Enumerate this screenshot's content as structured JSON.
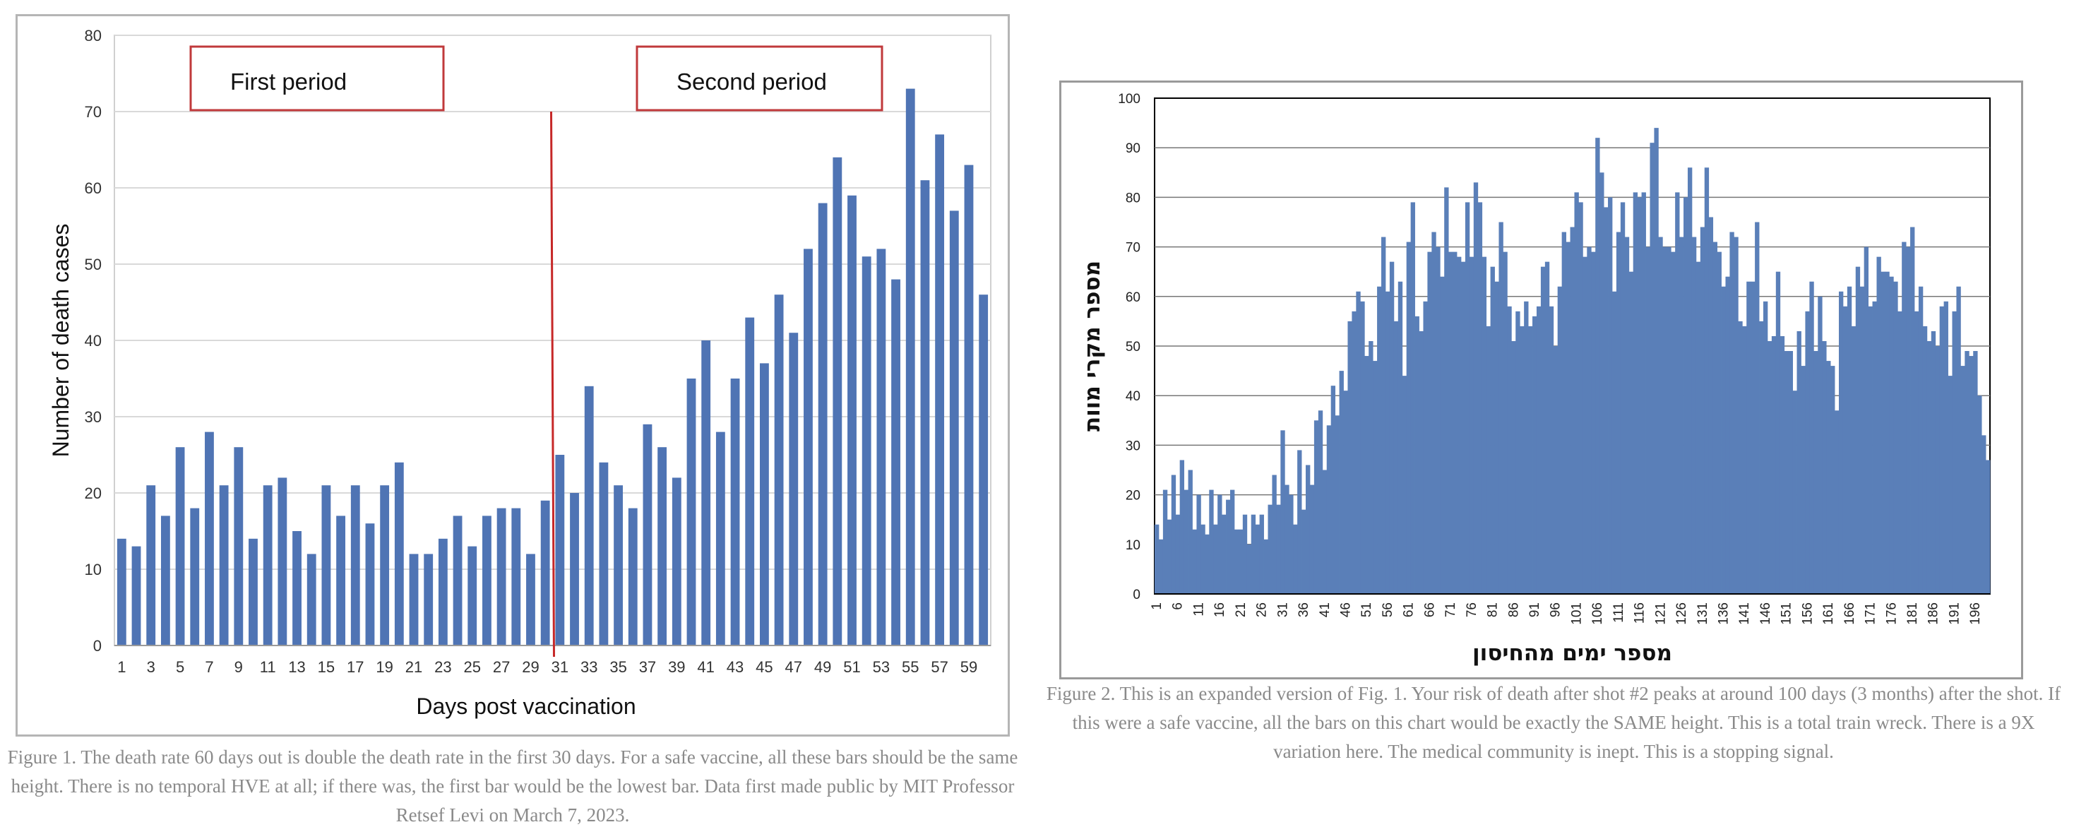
{
  "chart_data": [
    {
      "type": "bar",
      "title": "",
      "xlabel": "Days post vaccination",
      "ylabel": "Number of death cases",
      "ylim": [
        0,
        80
      ],
      "yticks": [
        0,
        10,
        20,
        30,
        40,
        50,
        60,
        70,
        80
      ],
      "grid": true,
      "color": "#4f74b4",
      "annotations": [
        "First period",
        "Second period"
      ],
      "divider_after_day": 30,
      "categories": [
        1,
        2,
        3,
        4,
        5,
        6,
        7,
        8,
        9,
        10,
        11,
        12,
        13,
        14,
        15,
        16,
        17,
        18,
        19,
        20,
        21,
        22,
        23,
        24,
        25,
        26,
        27,
        28,
        29,
        30,
        31,
        32,
        33,
        34,
        35,
        36,
        37,
        38,
        39,
        40,
        41,
        42,
        43,
        44,
        45,
        46,
        47,
        48,
        49,
        50,
        51,
        52,
        53,
        54,
        55,
        56,
        57,
        58,
        59,
        60
      ],
      "xtick_labels": [
        "1",
        "3",
        "5",
        "7",
        "9",
        "11",
        "13",
        "15",
        "17",
        "19",
        "21",
        "23",
        "25",
        "27",
        "29",
        "31",
        "33",
        "35",
        "37",
        "39",
        "41",
        "43",
        "45",
        "47",
        "49",
        "51",
        "53",
        "55",
        "57",
        "59"
      ],
      "values": [
        14,
        13,
        21,
        17,
        26,
        18,
        28,
        21,
        26,
        14,
        21,
        22,
        15,
        12,
        21,
        17,
        21,
        16,
        21,
        24,
        12,
        12,
        14,
        17,
        13,
        17,
        18,
        18,
        12,
        19,
        25,
        20,
        34,
        24,
        21,
        18,
        29,
        26,
        22,
        35,
        40,
        28,
        35,
        43,
        37,
        46,
        41,
        52,
        58,
        64,
        59,
        51,
        52,
        48,
        73,
        61,
        67,
        57,
        63,
        46
      ]
    },
    {
      "type": "bar",
      "title": "",
      "xlabel": "מספר ימים מהחיסון",
      "ylabel": "מספר מקרי מוות",
      "ylim": [
        0,
        100
      ],
      "yticks": [
        0,
        10,
        20,
        30,
        40,
        50,
        60,
        70,
        80,
        90,
        100
      ],
      "grid": true,
      "color": "#5a7fb8",
      "xtick_labels": [
        "1",
        "6",
        "11",
        "16",
        "21",
        "26",
        "31",
        "36",
        "41",
        "46",
        "51",
        "56",
        "61",
        "66",
        "71",
        "76",
        "81",
        "86",
        "91",
        "96",
        "101",
        "106",
        "111",
        "116",
        "121",
        "126",
        "131",
        "136",
        "141",
        "146",
        "151",
        "156",
        "161",
        "166",
        "171",
        "176",
        "181",
        "186",
        "191",
        "196"
      ],
      "x_start": 1,
      "x_end": 200,
      "values": [
        14,
        11,
        21,
        15,
        24,
        16,
        27,
        21,
        25,
        13,
        20,
        14,
        12,
        21,
        14,
        20,
        16,
        19,
        21,
        13,
        13,
        16,
        10,
        16,
        14,
        16,
        11,
        18,
        24,
        18,
        33,
        22,
        20,
        14,
        29,
        17,
        26,
        22,
        35,
        37,
        25,
        34,
        42,
        36,
        45,
        41,
        55,
        57,
        61,
        59,
        48,
        51,
        47,
        62,
        72,
        61,
        67,
        55,
        63,
        44,
        71,
        79,
        56,
        53,
        59,
        69,
        73,
        70,
        64,
        82,
        69,
        69,
        68,
        67,
        79,
        68,
        83,
        79,
        68,
        54,
        66,
        63,
        75,
        69,
        58,
        51,
        57,
        54,
        59,
        54,
        56,
        58,
        66,
        67,
        58,
        50,
        62,
        73,
        71,
        74,
        81,
        79,
        68,
        70,
        69,
        92,
        85,
        78,
        80,
        61,
        73,
        79,
        72,
        65,
        81,
        80,
        81,
        70,
        91,
        94,
        72,
        70,
        70,
        69,
        81,
        72,
        80,
        86,
        72,
        67,
        74,
        86,
        76,
        71,
        69,
        62,
        64,
        73,
        72,
        55,
        54,
        63,
        63,
        75,
        55,
        59,
        51,
        52,
        65,
        52,
        49,
        49,
        41,
        53,
        46,
        57,
        63,
        49,
        60,
        51,
        47,
        46,
        37,
        61,
        58,
        62,
        54,
        66,
        62,
        70,
        58,
        59,
        68,
        65,
        65,
        64,
        63,
        57,
        71,
        70,
        74,
        57,
        62,
        54,
        51,
        53,
        50,
        58,
        59,
        44,
        57,
        62,
        46,
        49,
        48,
        49,
        40,
        32,
        27
      ]
    }
  ],
  "captions": {
    "fig1": "Figure 1. The death rate 60 days out is double the death rate in the first 30 days. For a safe vaccine, all these bars should be the same height. There is no temporal HVE at all; if there was, the first bar would be the lowest bar. Data first made public by MIT Professor Retsef Levi on March 7, 2023.",
    "fig2": "Figure 2. This is an expanded version of Fig. 1. Your risk of death after shot #2 peaks at around 100 days (3 months) after the shot. If this were a safe vaccine, all the bars on this chart would be exactly the SAME height. This is a total train wreck. There is a 9X variation here. The medical community is inept. This is a stopping signal."
  }
}
